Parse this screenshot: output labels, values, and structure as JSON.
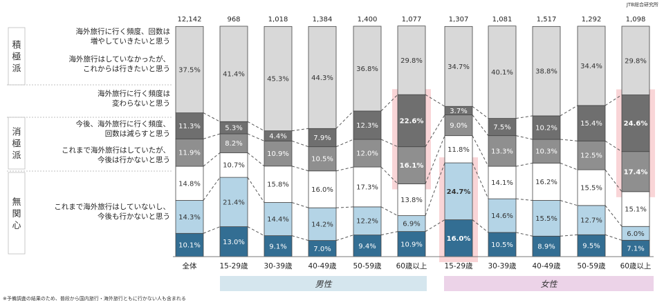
{
  "source_label": "JTB総合研究所",
  "footnote": "※予備調査の結果のため、普段から国内旅行・海外旅行ともに行かない人も含まれる",
  "groups": [
    {
      "label": "積極派",
      "rows": 2
    },
    {
      "label": "消極派",
      "rows": 3
    },
    {
      "label": "無関心",
      "rows": 1
    }
  ],
  "legend": [
    "海外旅行に行く頻度、回数は\n増やしていきたいと思う",
    "海外旅行はしていなかったが、\nこれからは行きたいと思う",
    "海外旅行に行く頻度は\n変わらないと思う",
    "今後、海外旅行に行く頻度、\n回数は減らすと思う",
    "これまで海外旅行はしていたが、\n今後は行かないと思う",
    "これまで海外旅行はしていないし、\n今後も行かないと思う"
  ],
  "gender_labels": [
    {
      "label": "男性",
      "color": "#d5e6ee"
    },
    {
      "label": "女性",
      "color": "#ecd3e8"
    }
  ],
  "chart_data": {
    "type": "bar",
    "stacked": true,
    "categories": [
      "全体",
      "15-29歳",
      "30-39歳",
      "40-49歳",
      "50-59歳",
      "60歳以上",
      "15-29歳",
      "30-39歳",
      "40-49歳",
      "50-59歳",
      "60歳以上"
    ],
    "n": [
      "12,142",
      "968",
      "1,018",
      "1,384",
      "1,400",
      "1,077",
      "1,307",
      "1,081",
      "1,517",
      "1,292",
      "1,098"
    ],
    "series": [
      {
        "key": "inc",
        "color": "#336e93",
        "values": [
          10.1,
          13.0,
          9.1,
          7.0,
          9.4,
          10.9,
          16.0,
          10.5,
          8.9,
          9.5,
          7.1
        ]
      },
      {
        "key": "new",
        "color": "#b4d4e6",
        "values": [
          14.3,
          21.4,
          14.4,
          14.2,
          12.2,
          6.9,
          24.7,
          14.6,
          15.5,
          12.7,
          6.0
        ]
      },
      {
        "key": "same",
        "color": "#ffffff",
        "values": [
          14.8,
          10.7,
          15.8,
          16.0,
          17.3,
          13.8,
          11.8,
          14.1,
          16.2,
          15.5,
          15.1
        ]
      },
      {
        "key": "dec",
        "color": "#8f8f8f",
        "values": [
          11.9,
          8.2,
          10.9,
          10.5,
          12.0,
          16.1,
          9.0,
          13.3,
          10.3,
          12.5,
          17.4
        ]
      },
      {
        "key": "stop",
        "color": "#6f6f6f",
        "values": [
          11.3,
          5.3,
          4.4,
          7.9,
          12.3,
          22.6,
          3.7,
          7.5,
          10.2,
          15.4,
          24.6
        ]
      },
      {
        "key": "never",
        "color": "#d8d8d8",
        "values": [
          37.5,
          41.4,
          45.3,
          44.3,
          36.8,
          29.8,
          34.7,
          40.1,
          38.8,
          34.4,
          29.8
        ]
      }
    ],
    "bold_labels": [
      [
        5,
        3
      ],
      [
        5,
        4
      ],
      [
        6,
        0
      ],
      [
        6,
        1
      ],
      [
        10,
        3
      ],
      [
        10,
        4
      ]
    ],
    "highlight_boxes": [
      {
        "bar": 5,
        "series_from": 3,
        "series_to": 4
      },
      {
        "bar": 6,
        "series_from": 0,
        "series_to": 1
      },
      {
        "bar": 10,
        "series_from": 3,
        "series_to": 4
      }
    ],
    "ylim": [
      0,
      100
    ]
  }
}
